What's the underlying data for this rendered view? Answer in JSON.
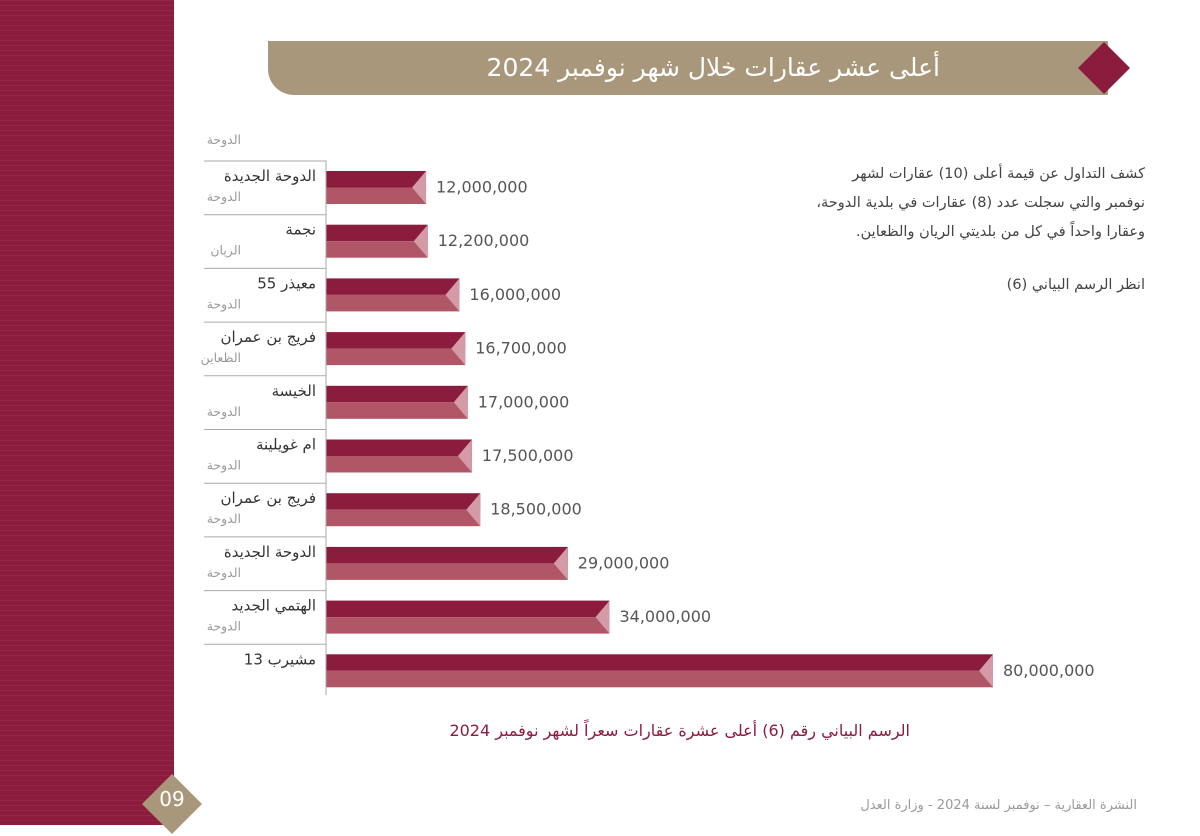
{
  "header": {
    "title": "أعلى عشر عقارات خلال شهر نوفمبر 2024"
  },
  "description": {
    "line1": "كشف التداول عن قيمة أعلى (10) عقارات لشهر",
    "line2": "نوفمبر والتي سجلت عدد (8) عقارات في بلدية الدوحة،",
    "line3": "وعقارا واحداً في كل من بلديتي الريان والظعاين.",
    "reference": "انظر الرسم البياني (6)"
  },
  "caption": "الرسم البياني رقم (6) أعلى عشرة عقارات سعراً لشهر نوفمبر 2024",
  "footer": {
    "page_number": "09",
    "text": "النشرة العقارية – نوفمبر لسنة 2024 - وزارة العدل"
  },
  "colors": {
    "brand": "#8c1c3d",
    "bar_light": "#b05667",
    "banner": "#a8977a"
  },
  "chart_data": {
    "type": "bar",
    "orientation": "horizontal",
    "top_municipality_label": "الدوحة",
    "categories": [
      {
        "name": "الدوحة الجديدة",
        "municipality": "الدوحة"
      },
      {
        "name": "نجمة",
        "municipality": "الريان"
      },
      {
        "name": "معيذر 55",
        "municipality": "الدوحة"
      },
      {
        "name": "فريج بن عمران",
        "municipality": "الظعاين"
      },
      {
        "name": "الخيسة",
        "municipality": "الدوحة"
      },
      {
        "name": "ام غويلينة",
        "municipality": "الدوحة"
      },
      {
        "name": "فريج بن عمران",
        "municipality": "الدوحة"
      },
      {
        "name": "الدوحة الجديدة",
        "municipality": "الدوحة"
      },
      {
        "name": "الهتمي الجديد",
        "municipality": "الدوحة"
      },
      {
        "name": "مشيرب 13",
        "municipality": ""
      }
    ],
    "values": [
      12000000,
      12200000,
      16000000,
      16700000,
      17000000,
      17500000,
      18500000,
      29000000,
      34000000,
      80000000
    ],
    "value_labels": [
      "12,000,000",
      "12,200,000",
      "16,000,000",
      "16,700,000",
      "17,000,000",
      "17,500,000",
      "18,500,000",
      "29,000,000",
      "34,000,000",
      "80,000,000"
    ]
  }
}
